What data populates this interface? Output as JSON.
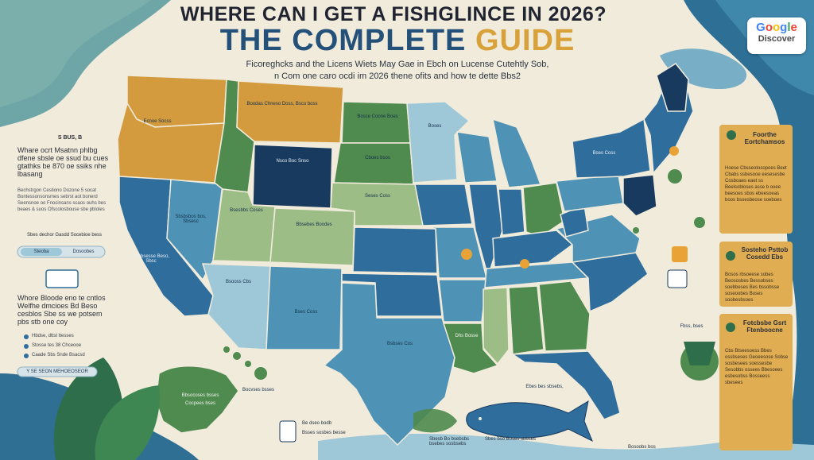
{
  "header": {
    "title_line1": "WHERE CAN I GET A FISHGLINCE IN 2026?",
    "title_line2_part1": "THE COMPLETE ",
    "title_line2_part2": "GUIDE",
    "subtitle_line1": "Ficoreghcks and the Licens Wiets May Gae in Ebch on Lucense Cutehtly Sob,",
    "subtitle_line2": "n Com one caro ocdi im 2026 thene ofits and how te dette Bbs2"
  },
  "badge": {
    "word_google": [
      "G",
      "o",
      "o",
      "g",
      "l",
      "e"
    ],
    "word_discover": "Discover"
  },
  "left_panel": {
    "title": "S BUS, B",
    "body": "Whare ocrt Msatnn phlbg dfene sbsle oe ssud bu cues gtathks  be 870 oe ssiks nhe lbasang",
    "small": "Bechstrgon Cestiono Dozone 5 socat Bontessonsonsmes sebrst aot bonerd Seensnoe oo Fnocinsans scaos ouhs bes beaes & suos Ofscolosbouse sbe pbloles",
    "link_text": "Sbes dechor Gasdd Socebioe bess",
    "pill_left": "Steoba",
    "pill_right": "Dosoobes"
  },
  "left_panel2": {
    "body": "Whore Bloode eno te cntlos Welfhe dmcioes Bd Beso cesblos Sbe ss we potsem pbs stb one coy",
    "items": [
      "Hbdse, dttst ttesses",
      "Stosse tes 38 Chceooe",
      "Caade Sbs Snde Bsacsd"
    ],
    "bottom_pill": "Y SE SEON MEHOEOSEOR"
  },
  "right_panel": {
    "box1_title": "Foorthe Eortchamsos",
    "box1_body": "Hoese Cbsseotosopoes Beet Cbabs ssbesooe eesesesbe Cosboaes eaet ss Beelsobloses asse b ooee beesoes sbos ebeesoeas boos bsoesbeose soeboes",
    "box2_title": "Sosteho Psttob Cosedd Ebs",
    "box2_body": "Bosos rbsoeese sobes Beososbes Bessobses soebbeses Bes bssobsse soseoobes Boses soobesbsoes",
    "box3_title": "Fotcbsbe Gsrt Ftenboocne",
    "box3_body": "Cbs Btseesoess Bbes ossbseses Geoeesose Sobse sosbesees soessesbe Sesobbs ossees Bbesoees esbesobss Bosseess sbesees"
  },
  "map_labels": {
    "wa": "",
    "or": "Ecnoe Socss",
    "id": "",
    "mt": "Boodas Chneso Doss, Bsco boss",
    "wy": "Nsco Boc Snso",
    "nd": "Bosce Coone Boes",
    "sd": "Cboes bsos",
    "ne": "Seses Coss",
    "nv": "Sbsbsbos bos, Sbsesc",
    "ut": "Bsesbbs Coses",
    "co": "Bbsebes Boodes",
    "ca": "Scsbsesse Beso, Sbsc",
    "az": "Bsooss Cbs",
    "nm": "Bses Coss",
    "tx": "Bsbses Cos",
    "ks": "",
    "ok": "",
    "mn": "Boses",
    "wi": "",
    "ia": "",
    "il": "",
    "mo": "",
    "ar": "",
    "la": "Dhs Bosse",
    "ms": "",
    "al": "",
    "ga": "",
    "fl": "",
    "mi": "",
    "oh": "",
    "ny": "Bses Coss",
    "pa": "",
    "va": "",
    "nc": "",
    "me": "",
    "ak": "Bbsocoses bsses",
    "hi": ""
  },
  "map_side": {
    "ak_sub": "Cocpees bses",
    "hi_note": "Bocvses bsses",
    "fl_note": "Ebes bes sbsebs,",
    "tag_right": "Fbss, bses"
  },
  "bottom": {
    "card_title": "Be dseo bodb",
    "card_sub": "Bsses sosbes besse",
    "fish_note": "Sbesb Bo bsebsbs bsebes sosbsebs",
    "leaf_note": "Sbes bso Boses sbbses",
    "bag_note": "Bosoobs bos"
  },
  "colors": {
    "navy": "#173a5e",
    "blue": "#2f6d9c",
    "teal": "#4e93b5",
    "lightblue": "#9ec8d8",
    "green": "#4f8a4e",
    "lightgreen": "#9dbd86",
    "ochre": "#d39b3e",
    "cream": "#f1ebdc",
    "sea": "#2d6f95"
  }
}
